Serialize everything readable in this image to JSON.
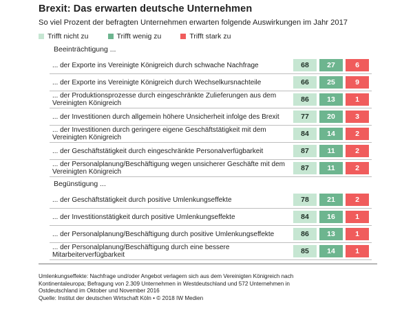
{
  "title": "Brexit: Das erwarten deutsche Unternehmen",
  "subtitle": "So viel Prozent der befragten Unternehmen erwarten folgende Auswirkungen im Jahr 2017",
  "colors": {
    "not_at_all": "#c6e6d2",
    "slightly": "#6db58f",
    "strongly": "#f05c5c"
  },
  "legend": [
    "Trifft nicht zu",
    "Trifft wenig zu",
    "Trifft stark zu"
  ],
  "groups": [
    {
      "label": "Beeinträchtigung ...",
      "rows": [
        {
          "label": "... der Exporte ins Vereinigte Königreich durch schwache Nachfrage",
          "values": [
            68,
            27,
            6
          ]
        },
        {
          "label": "... der Exporte ins Vereinigte Königreich durch Wechselkursnachteile",
          "values": [
            66,
            25,
            9
          ]
        },
        {
          "label": "... der Produktionsprozesse durch eingeschränkte Zulieferungen aus dem Vereinigten Königreich",
          "values": [
            86,
            13,
            1
          ]
        },
        {
          "label": "... der Investitionen durch allgemein höhere Unsicherheit infolge des Brexit",
          "values": [
            77,
            20,
            3
          ]
        },
        {
          "label": "... der Investitionen durch geringere eigene Geschäftstätigkeit mit dem Vereinigten Königreich",
          "values": [
            84,
            14,
            2
          ]
        },
        {
          "label": "... der Geschäftstätigkeit durch eingeschränkte Personalverfügbarkeit",
          "values": [
            87,
            11,
            2
          ]
        },
        {
          "label": "... der Personalplanung/Beschäftigung wegen unsicherer Geschäfte mit dem Vereinigten Königreich",
          "values": [
            87,
            11,
            2
          ]
        }
      ]
    },
    {
      "label": "Begünstigung ...",
      "rows": [
        {
          "label": "... der Geschäftstätigkeit durch positive Umlenkungseffekte",
          "values": [
            78,
            21,
            2
          ]
        },
        {
          "label": "... der Investitionstätigkeit durch positive Umlenkungseffekte",
          "values": [
            84,
            16,
            1
          ]
        },
        {
          "label": "... der Personalplanung/Beschäftigung durch positive Umlenkungseffekte",
          "values": [
            86,
            13,
            1
          ]
        },
        {
          "label": "... der Personalplanung/Beschäftigung durch eine bessere Mitarbeiterverfügbarkeit",
          "values": [
            85,
            14,
            1
          ]
        }
      ]
    }
  ],
  "footnote": [
    "Umlenkungseffekte: Nachfrage und/oder Angebot verlagern sich aus dem Vereinigten Königreich nach",
    "Kontinentaleuropa; Befragung von 2.309 Unternehmen in Westdeutschland und 572 Unternehmen in",
    "Ostdeutschland im Oktober und November 2016",
    "Quelle: Institut der deutschen Wirtschaft Köln • © 2018 IW Medien"
  ],
  "chart_data": {
    "type": "table",
    "title": "Brexit: Das erwarten deutsche Unternehmen",
    "subtitle": "So viel Prozent der befragten Unternehmen erwarten folgende Auswirkungen im Jahr 2017",
    "unit": "percent",
    "columns": [
      "Trifft nicht zu",
      "Trifft wenig zu",
      "Trifft stark zu"
    ],
    "series": [
      {
        "name": "Trifft nicht zu",
        "values": [
          68,
          66,
          86,
          77,
          84,
          87,
          87,
          78,
          84,
          86,
          85
        ]
      },
      {
        "name": "Trifft wenig zu",
        "values": [
          27,
          25,
          13,
          20,
          14,
          11,
          11,
          21,
          16,
          13,
          14
        ]
      },
      {
        "name": "Trifft stark zu",
        "values": [
          6,
          9,
          1,
          3,
          2,
          2,
          2,
          2,
          1,
          1,
          1
        ]
      }
    ]
  }
}
